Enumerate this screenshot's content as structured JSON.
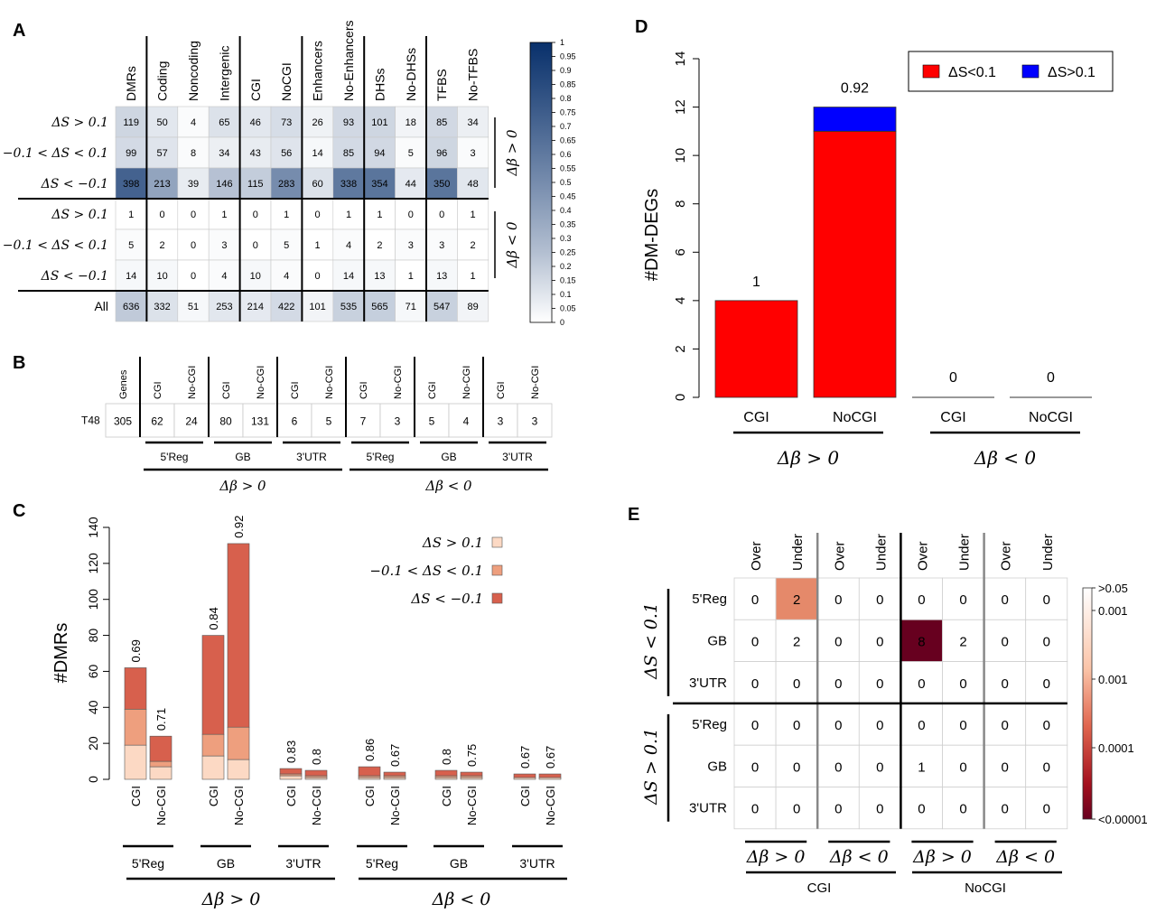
{
  "panels": {
    "A": "A",
    "B": "B",
    "C": "C",
    "D": "D",
    "E": "E"
  },
  "chart_data": [
    {
      "panel": "A",
      "type": "heatmap",
      "columns": [
        "DMRs",
        "Coding",
        "Noncoding",
        "Intergenic",
        "CGI",
        "NoCGI",
        "Enhancers",
        "No-Enhancers",
        "DHSs",
        "No-DHSs",
        "TFBS",
        "No-TFBS"
      ],
      "rows": [
        "ΔS > 0.1",
        "−0.1 < ΔS < 0.1",
        "ΔS < −0.1",
        "ΔS > 0.1",
        "−0.1 < ΔS < 0.1",
        "ΔS < −0.1",
        "All"
      ],
      "values": [
        [
          119,
          50,
          4,
          65,
          46,
          73,
          26,
          93,
          101,
          18,
          85,
          34
        ],
        [
          99,
          57,
          8,
          34,
          43,
          56,
          14,
          85,
          94,
          5,
          96,
          3
        ],
        [
          398,
          213,
          39,
          146,
          115,
          283,
          60,
          338,
          354,
          44,
          350,
          48
        ],
        [
          1,
          0,
          0,
          1,
          0,
          1,
          0,
          1,
          1,
          0,
          0,
          1
        ],
        [
          5,
          2,
          0,
          3,
          0,
          5,
          1,
          4,
          2,
          3,
          3,
          2
        ],
        [
          14,
          10,
          0,
          4,
          10,
          4,
          0,
          14,
          13,
          1,
          13,
          1
        ],
        [
          636,
          332,
          51,
          253,
          214,
          422,
          101,
          535,
          565,
          71,
          547,
          89
        ]
      ],
      "shade": [
        [
          0.15,
          0.08,
          0.01,
          0.1,
          0.08,
          0.12,
          0.04,
          0.14,
          0.15,
          0.03,
          0.14,
          0.05
        ],
        [
          0.13,
          0.09,
          0.01,
          0.05,
          0.06,
          0.09,
          0.02,
          0.13,
          0.14,
          0.01,
          0.15,
          0.01
        ],
        [
          0.72,
          0.38,
          0.06,
          0.24,
          0.19,
          0.5,
          0.1,
          0.6,
          0.62,
          0.07,
          0.62,
          0.08
        ],
        [
          0,
          0,
          0,
          0,
          0,
          0,
          0,
          0,
          0,
          0,
          0,
          0
        ],
        [
          0.01,
          0,
          0,
          0.01,
          0,
          0.01,
          0,
          0.01,
          0,
          0.01,
          0.01,
          0
        ],
        [
          0.02,
          0.02,
          0,
          0.01,
          0.02,
          0.01,
          0,
          0.02,
          0.02,
          0,
          0.02,
          0
        ],
        [
          0.2,
          0.1,
          0.02,
          0.08,
          0.07,
          0.13,
          0.03,
          0.17,
          0.18,
          0.02,
          0.17,
          0.03
        ]
      ],
      "group_labels": [
        "Δβ > 0",
        "Δβ < 0"
      ],
      "colorbar_ticks": [
        "1",
        "0.95",
        "0.9",
        "0.85",
        "0.8",
        "0.75",
        "0.7",
        "0.65",
        "0.6",
        "0.55",
        "0.5",
        "0.45",
        "0.4",
        "0.35",
        "0.3",
        "0.25",
        "0.2",
        "0.15",
        "0.1",
        "0.05",
        "0"
      ]
    },
    {
      "panel": "B",
      "type": "table",
      "row_label": "T48",
      "columns": [
        "Genes",
        "CGI",
        "No-CGI",
        "CGI",
        "No-CGI",
        "CGI",
        "No-CGI",
        "CGI",
        "No-CGI",
        "CGI",
        "No-CGI",
        "CGI",
        "No-CGI"
      ],
      "values": [
        305,
        62,
        24,
        80,
        131,
        6,
        5,
        7,
        3,
        5,
        4,
        3,
        3
      ],
      "region_labels": [
        "5'Reg",
        "GB",
        "3'UTR",
        "5'Reg",
        "GB",
        "3'UTR"
      ],
      "group_labels": [
        "Δβ > 0",
        "Δβ < 0"
      ]
    },
    {
      "panel": "C",
      "type": "bar",
      "ylabel": "#DMRs",
      "ylim": [
        0,
        140
      ],
      "yticks": [
        0,
        20,
        40,
        60,
        80,
        100,
        120,
        140
      ],
      "categories": [
        "CGI",
        "No-CGI",
        "CGI",
        "No-CGI",
        "CGI",
        "No-CGI",
        "CGI",
        "No-CGI",
        "CGI",
        "No-CGI",
        "CGI",
        "No-CGI"
      ],
      "series": [
        {
          "name": "ΔS > 0.1",
          "color": "#fcd9c4",
          "values": [
            19,
            7,
            13,
            11,
            2,
            1,
            1,
            1,
            1,
            1,
            1,
            1
          ]
        },
        {
          "name": "−0.1 < ΔS < 0.1",
          "color": "#ee9f7e",
          "values": [
            20,
            3,
            12,
            18,
            1,
            1,
            1,
            1,
            1,
            1,
            0,
            0
          ]
        },
        {
          "name": "ΔS < −0.1",
          "color": "#d7604d",
          "values": [
            23,
            14,
            55,
            102,
            3,
            3,
            5,
            2,
            3,
            2,
            2,
            2
          ]
        }
      ],
      "bar_labels": [
        "0.69",
        "0.71",
        "0.84",
        "0.92",
        "0.83",
        "0.8",
        "0.86",
        "0.67",
        "0.8",
        "0.75",
        "0.67",
        "0.67"
      ],
      "region_labels": [
        "5'Reg",
        "GB",
        "3'UTR",
        "5'Reg",
        "GB",
        "3'UTR"
      ],
      "group_labels": [
        "Δβ > 0",
        "Δβ < 0"
      ]
    },
    {
      "panel": "D",
      "type": "bar",
      "ylabel": "#DM-DEGs",
      "ylim": [
        0,
        14
      ],
      "yticks": [
        0,
        2,
        4,
        6,
        8,
        10,
        12,
        14
      ],
      "categories": [
        "CGI",
        "NoCGI",
        "CGI",
        "NoCGI"
      ],
      "series": [
        {
          "name": "ΔS<0.1",
          "color": "#ff0000",
          "values": [
            4,
            11,
            0,
            0
          ]
        },
        {
          "name": "ΔS>0.1",
          "color": "#0000ff",
          "values": [
            0,
            1,
            0,
            0
          ]
        }
      ],
      "bar_labels": [
        "1",
        "0.92",
        "0",
        "0"
      ],
      "group_labels": [
        "Δβ > 0",
        "Δβ < 0"
      ],
      "legend": "top-right"
    },
    {
      "panel": "E",
      "type": "heatmap",
      "columns": [
        "Over",
        "Under",
        "Over",
        "Under",
        "Over",
        "Under",
        "Over",
        "Under"
      ],
      "rows": [
        "5'Reg",
        "GB",
        "3'UTR",
        "5'Reg",
        "GB",
        "3'UTR"
      ],
      "values": [
        [
          0,
          2,
          0,
          0,
          0,
          0,
          0,
          0
        ],
        [
          0,
          2,
          0,
          0,
          8,
          2,
          0,
          0
        ],
        [
          0,
          0,
          0,
          0,
          0,
          0,
          0,
          0
        ],
        [
          0,
          0,
          0,
          0,
          0,
          0,
          0,
          0
        ],
        [
          0,
          0,
          0,
          0,
          1,
          0,
          0,
          0
        ],
        [
          0,
          0,
          0,
          0,
          0,
          0,
          0,
          0
        ]
      ],
      "cell_colors": {
        "0-1": "#e5896a",
        "1-4": "#67001f"
      },
      "row_groups": [
        "ΔS < 0.1",
        "ΔS > 0.1"
      ],
      "column_groups": [
        "Δβ > 0",
        "Δβ < 0",
        "Δβ > 0",
        "Δβ < 0"
      ],
      "column_supergroups": [
        "CGI",
        "NoCGI"
      ],
      "colorbar_ticks": [
        ">0.05",
        "0.001",
        "0.001",
        "0.0001",
        "<0.00001"
      ]
    }
  ]
}
